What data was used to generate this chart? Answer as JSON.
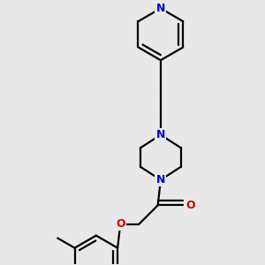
{
  "bg_color": "#e8e8e8",
  "bond_color": "#000000",
  "N_color": "#0000cc",
  "O_color": "#cc0000",
  "line_width": 1.6,
  "font_size": 9,
  "figsize": [
    3.0,
    3.0
  ],
  "dpi": 100,
  "xlim": [
    0.05,
    0.95
  ],
  "ylim": [
    0.05,
    0.98
  ]
}
